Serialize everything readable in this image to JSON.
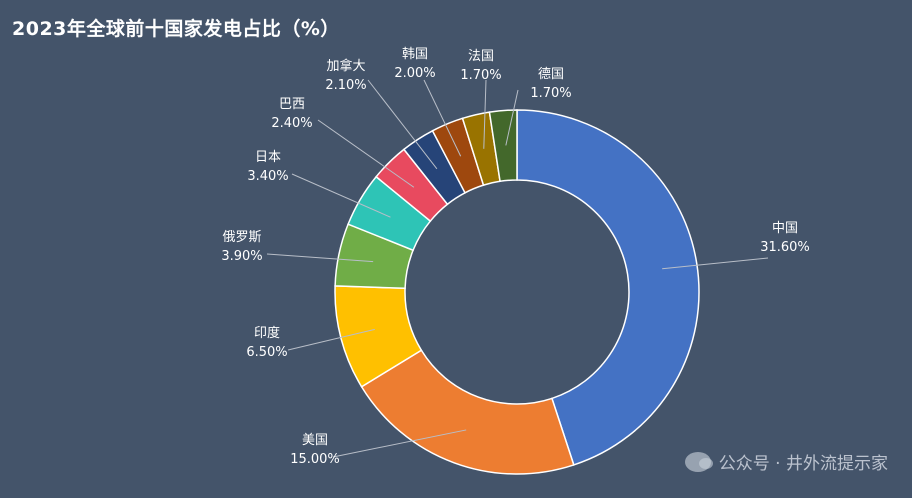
{
  "chart_data": {
    "type": "pie",
    "donut": true,
    "title": "2023年全球前十国家发电占比（%）",
    "legend": "none",
    "slices": [
      {
        "label": "中国",
        "value": 31.6,
        "display": "31.60%",
        "color": "#4472c4"
      },
      {
        "label": "美国",
        "value": 15.0,
        "display": "15.00%",
        "color": "#ed7d31"
      },
      {
        "label": "印度",
        "value": 6.5,
        "display": "6.50%",
        "color": "#ffc000"
      },
      {
        "label": "俄罗斯",
        "value": 3.9,
        "display": "3.90%",
        "color": "#70ad47"
      },
      {
        "label": "日本",
        "value": 3.4,
        "display": "3.40%",
        "color": "#2ec4b6"
      },
      {
        "label": "巴西",
        "value": 2.4,
        "display": "2.40%",
        "color": "#e84a5f"
      },
      {
        "label": "加拿大",
        "value": 2.1,
        "display": "2.10%",
        "color": "#264478"
      },
      {
        "label": "韩国",
        "value": 2.0,
        "display": "2.00%",
        "color": "#9e480e"
      },
      {
        "label": "法国",
        "value": 1.7,
        "display": "1.70%",
        "color": "#997300"
      },
      {
        "label": "德国",
        "value": 1.7,
        "display": "1.70%",
        "color": "#43682b"
      }
    ]
  },
  "watermark": {
    "text": "公众号 · 井外流提示家"
  }
}
